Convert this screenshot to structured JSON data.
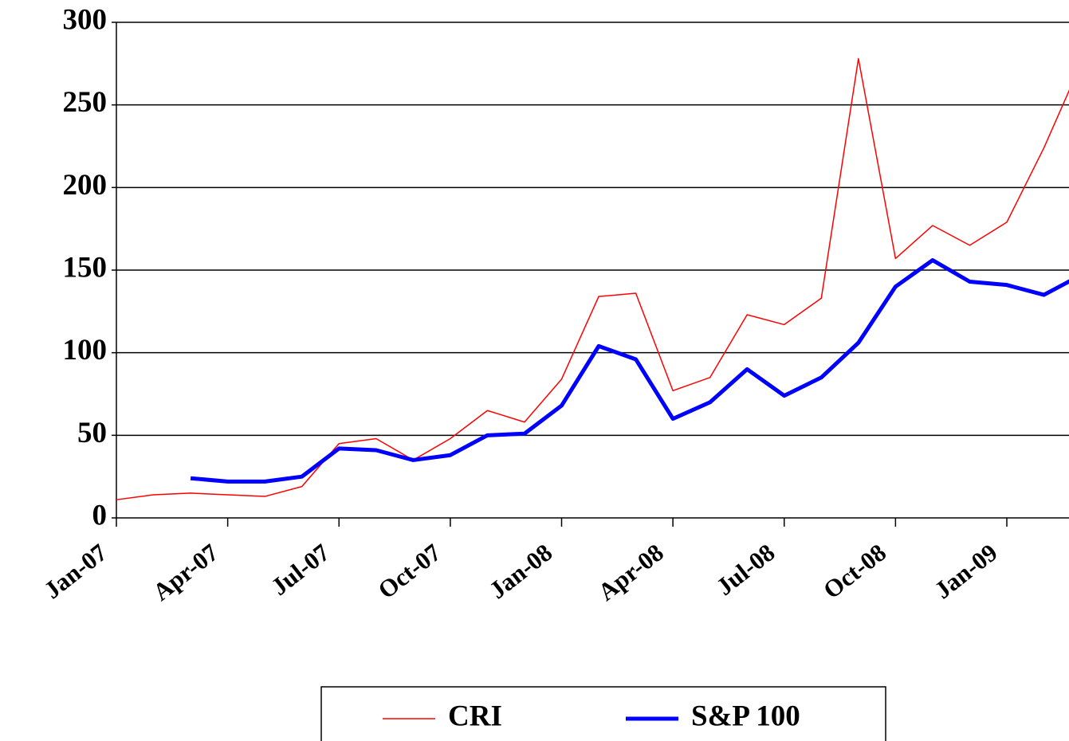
{
  "chart_data": {
    "type": "line",
    "categories": [
      "Jan-07",
      null,
      null,
      "Apr-07",
      null,
      null,
      "Jul-07",
      null,
      null,
      "Oct-07",
      null,
      null,
      "Jan-08",
      null,
      null,
      "Apr-08",
      null,
      null,
      "Jul-08",
      null,
      null,
      "Oct-08",
      null,
      null,
      "Jan-09",
      null,
      null
    ],
    "series": [
      {
        "name": "CRI",
        "color": "#ff0000",
        "values": [
          11,
          14,
          15,
          14,
          13,
          19,
          45,
          48,
          35,
          48,
          65,
          58,
          84,
          134,
          136,
          77,
          85,
          123,
          117,
          133,
          278,
          157,
          177,
          165,
          179,
          224,
          275
        ]
      },
      {
        "name": "S&P 100",
        "color": "#0000ff",
        "values": [
          null,
          null,
          24,
          22,
          22,
          25,
          42,
          41,
          35,
          38,
          50,
          51,
          68,
          104,
          96,
          60,
          70,
          90,
          74,
          85,
          106,
          140,
          156,
          143,
          141,
          135,
          147
        ]
      }
    ],
    "ylim": [
      0,
      300
    ],
    "yticks": [
      0,
      50,
      100,
      150,
      200,
      250,
      300
    ],
    "grid": true,
    "legend": "bottom"
  }
}
